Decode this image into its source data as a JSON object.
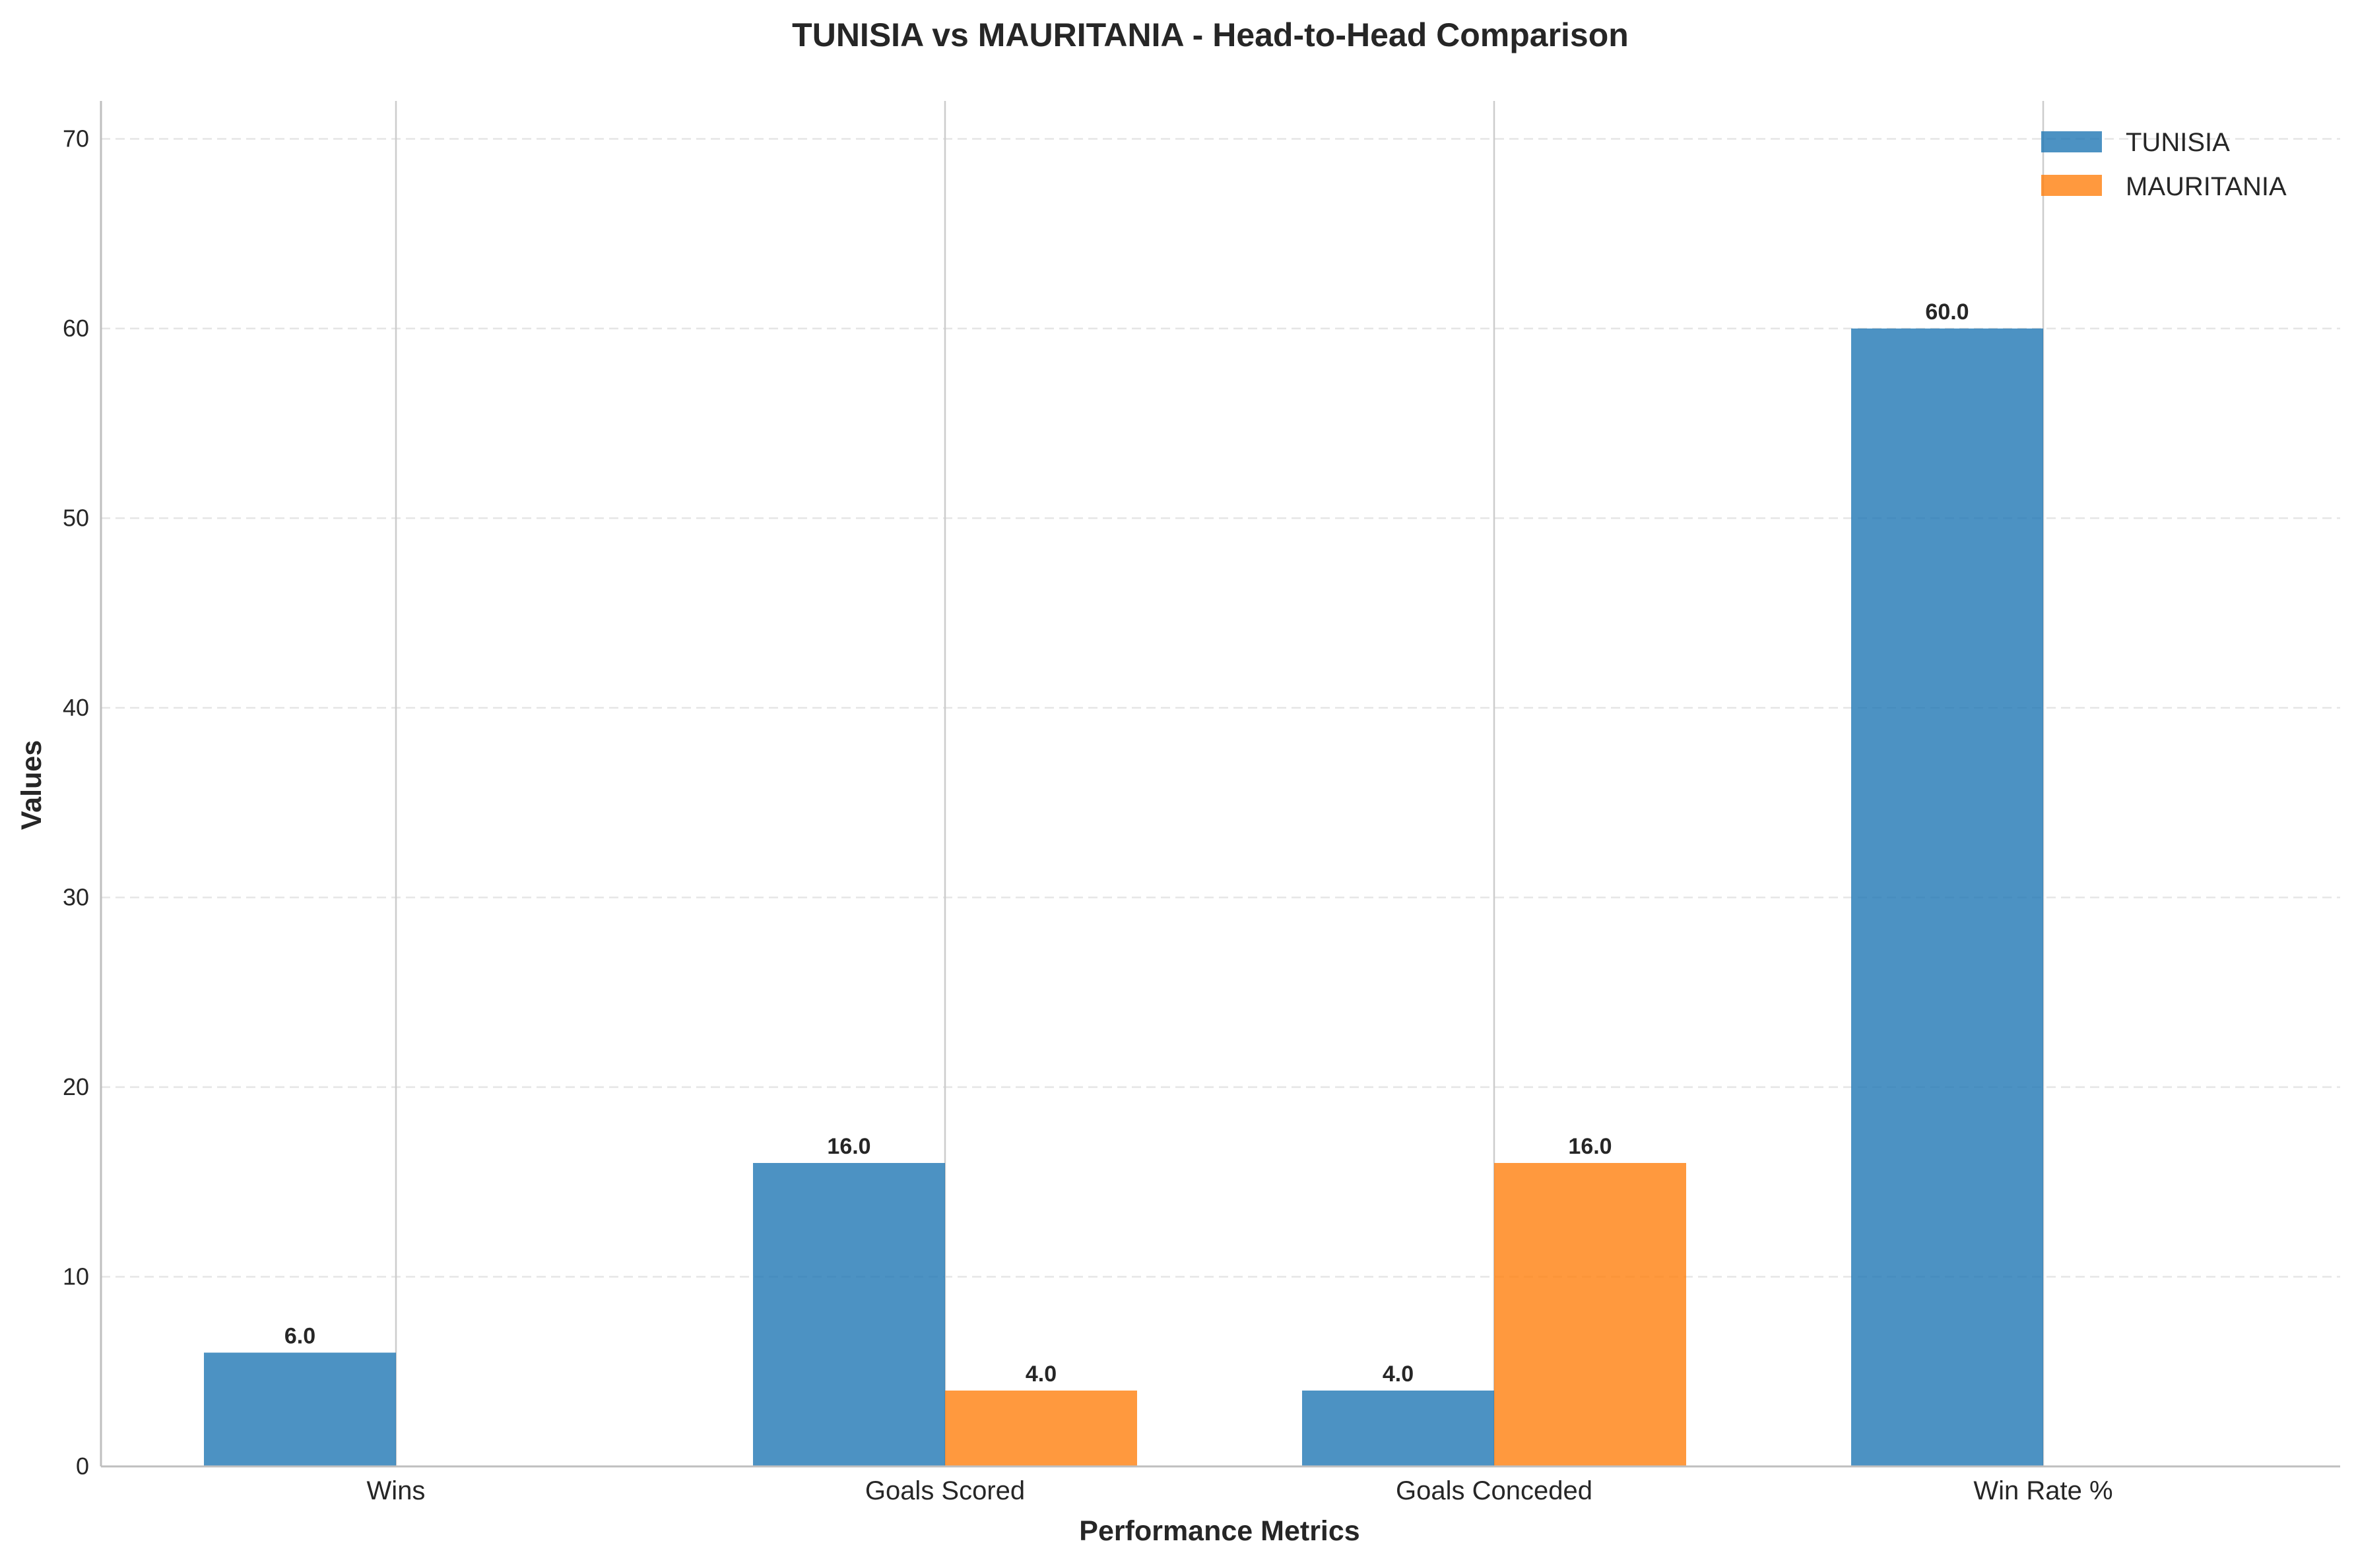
{
  "chart_data": {
    "type": "bar",
    "title": "TUNISIA vs MAURITANIA - Head-to-Head Comparison",
    "xlabel": "Performance Metrics",
    "ylabel": "Values",
    "categories": [
      "Wins",
      "Goals Scored",
      "Goals Conceded",
      "Win Rate %"
    ],
    "series": [
      {
        "name": "TUNISIA",
        "values": [
          6.0,
          16.0,
          4.0,
          60.0
        ],
        "color": "#1f77b4",
        "labels": [
          "6.0",
          "16.0",
          "4.0",
          "60.0"
        ]
      },
      {
        "name": "MAURITANIA",
        "values": [
          0,
          4.0,
          16.0,
          0
        ],
        "color": "#ff7f0e",
        "labels": [
          "",
          "4.0",
          "16.0",
          ""
        ]
      }
    ],
    "ylim": [
      0,
      72
    ],
    "yticks": [
      0,
      10,
      20,
      30,
      40,
      50,
      60,
      70
    ],
    "grid": true,
    "legend_position": "top-right"
  }
}
